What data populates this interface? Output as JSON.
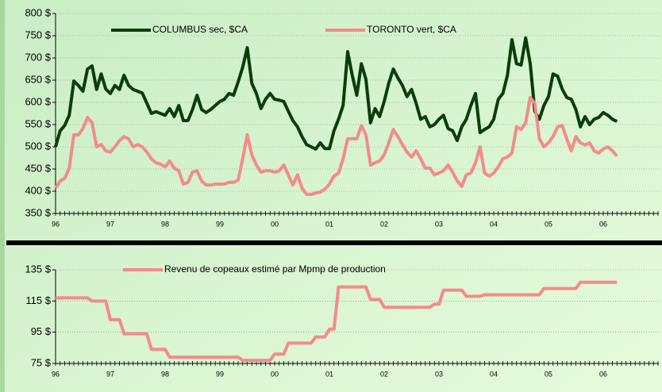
{
  "chart_data": [
    {
      "type": "line",
      "categories": [
        "96",
        null,
        null,
        null,
        null,
        null,
        null,
        null,
        null,
        null,
        null,
        null,
        "97",
        null,
        null,
        null,
        null,
        null,
        null,
        null,
        null,
        null,
        null,
        null,
        "98",
        null,
        null,
        null,
        null,
        null,
        null,
        null,
        null,
        null,
        null,
        null,
        "99",
        null,
        null,
        null,
        null,
        null,
        null,
        null,
        null,
        null,
        null,
        null,
        "00",
        null,
        null,
        null,
        null,
        null,
        null,
        null,
        null,
        null,
        null,
        null,
        "01",
        null,
        null,
        null,
        null,
        null,
        null,
        null,
        null,
        null,
        null,
        null,
        "02",
        null,
        null,
        null,
        null,
        null,
        null,
        null,
        null,
        null,
        null,
        null,
        "03",
        null,
        null,
        null,
        null,
        null,
        null,
        null,
        null,
        null,
        null,
        null,
        "04",
        null,
        null,
        null,
        null,
        null,
        null,
        null,
        null,
        null,
        null,
        null,
        "05",
        null,
        null,
        null,
        null,
        null,
        null,
        null,
        null,
        null,
        null,
        null,
        "06",
        null,
        null,
        null
      ],
      "series": [
        {
          "name": "COLUMBUS sec, $CA",
          "color": "#0b3d0b",
          "values": [
            500,
            536,
            548,
            571,
            648,
            638,
            625,
            675,
            682,
            629,
            664,
            630,
            620,
            638,
            629,
            661,
            638,
            629,
            625,
            621,
            598,
            575,
            579,
            575,
            571,
            586,
            568,
            593,
            559,
            559,
            584,
            616,
            584,
            577,
            584,
            593,
            602,
            607,
            620,
            616,
            646,
            679,
            723,
            643,
            620,
            586,
            607,
            620,
            607,
            605,
            602,
            580,
            559,
            545,
            523,
            505,
            500,
            495,
            509,
            496,
            496,
            536,
            562,
            593,
            714,
            661,
            616,
            687,
            652,
            554,
            586,
            568,
            602,
            643,
            675,
            655,
            638,
            613,
            629,
            598,
            562,
            568,
            545,
            550,
            562,
            571,
            541,
            536,
            514,
            545,
            562,
            593,
            620,
            532,
            539,
            545,
            562,
            607,
            620,
            661,
            741,
            687,
            684,
            745,
            687,
            580,
            562,
            593,
            613,
            664,
            659,
            630,
            611,
            607,
            584,
            545,
            568,
            550,
            562,
            566,
            577,
            571,
            562,
            557
          ]
        },
        {
          "name": "TORONTO vert, $CA",
          "color": "#f58a8a",
          "values": [
            407,
            423,
            429,
            452,
            527,
            527,
            541,
            566,
            554,
            500,
            505,
            491,
            488,
            500,
            514,
            523,
            518,
            500,
            505,
            500,
            488,
            473,
            464,
            461,
            455,
            468,
            452,
            446,
            416,
            420,
            443,
            446,
            423,
            414,
            414,
            416,
            416,
            416,
            420,
            420,
            425,
            473,
            527,
            482,
            459,
            443,
            446,
            446,
            443,
            446,
            459,
            437,
            414,
            437,
            407,
            393,
            393,
            396,
            398,
            405,
            416,
            434,
            441,
            473,
            518,
            518,
            518,
            548,
            527,
            459,
            464,
            468,
            482,
            509,
            539,
            523,
            505,
            488,
            477,
            491,
            473,
            452,
            452,
            437,
            441,
            446,
            459,
            443,
            423,
            411,
            437,
            441,
            464,
            500,
            441,
            434,
            441,
            455,
            473,
            477,
            486,
            545,
            539,
            554,
            611,
            598,
            518,
            500,
            509,
            523,
            545,
            548,
            518,
            491,
            523,
            509,
            504,
            509,
            491,
            486,
            495,
            500,
            491,
            479
          ]
        }
      ],
      "ylim": [
        350,
        800
      ],
      "yticks": [
        {
          "value": 350,
          "label": "350 $"
        },
        {
          "value": 400,
          "label": "400 $"
        },
        {
          "value": 450,
          "label": "450 $"
        },
        {
          "value": 500,
          "label": "500 $"
        },
        {
          "value": 550,
          "label": "550 $"
        },
        {
          "value": 600,
          "label": "600 $"
        },
        {
          "value": 650,
          "label": "650 $"
        },
        {
          "value": 700,
          "label": "700 $"
        },
        {
          "value": 750,
          "label": "750 $"
        },
        {
          "value": 800,
          "label": "800 $"
        }
      ],
      "grid": true
    },
    {
      "type": "line",
      "categories": [
        "96",
        null,
        null,
        null,
        null,
        null,
        null,
        null,
        null,
        null,
        null,
        null,
        "97",
        null,
        null,
        null,
        null,
        null,
        null,
        null,
        null,
        null,
        null,
        null,
        "98",
        null,
        null,
        null,
        null,
        null,
        null,
        null,
        null,
        null,
        null,
        null,
        "99",
        null,
        null,
        null,
        null,
        null,
        null,
        null,
        null,
        null,
        null,
        null,
        "00",
        null,
        null,
        null,
        null,
        null,
        null,
        null,
        null,
        null,
        null,
        null,
        "01",
        null,
        null,
        null,
        null,
        null,
        null,
        null,
        null,
        null,
        null,
        null,
        "02",
        null,
        null,
        null,
        null,
        null,
        null,
        null,
        null,
        null,
        null,
        null,
        "03",
        null,
        null,
        null,
        null,
        null,
        null,
        null,
        null,
        null,
        null,
        null,
        "04",
        null,
        null,
        null,
        null,
        null,
        null,
        null,
        null,
        null,
        null,
        null,
        "05",
        null,
        null,
        null,
        null,
        null,
        null,
        null,
        null,
        null,
        null,
        null,
        "06",
        null,
        null,
        null
      ],
      "series": [
        {
          "name": "Revenu de copeaux estimé par Mpmp de production",
          "color": "#f58a8a",
          "values": [
            117,
            117,
            117,
            117,
            117,
            117,
            117,
            117,
            115,
            115,
            115,
            115,
            103,
            103,
            103,
            94,
            94,
            94,
            94,
            94,
            94,
            84,
            84,
            84,
            84,
            79,
            79,
            79,
            79,
            79,
            79,
            79,
            79,
            79,
            79,
            79,
            79,
            79,
            79,
            79,
            79,
            77,
            77,
            77,
            77,
            77,
            77,
            77,
            81,
            81,
            81,
            88,
            88,
            88,
            88,
            88,
            88,
            92,
            92,
            92,
            97,
            97,
            124,
            124,
            124,
            124,
            124,
            124,
            124,
            116,
            116,
            116,
            111,
            111,
            111,
            111,
            111,
            111,
            111,
            111,
            111,
            111,
            111,
            113,
            113,
            122,
            122,
            122,
            122,
            122,
            118,
            118,
            118,
            118,
            119,
            119,
            119,
            119,
            119,
            119,
            119,
            119,
            119,
            119,
            119,
            119,
            119,
            123,
            123,
            123,
            123,
            123,
            123,
            123,
            123,
            127,
            127,
            127,
            127,
            127,
            127,
            127,
            127,
            127
          ]
        }
      ],
      "ylim": [
        75,
        135
      ],
      "yticks": [
        {
          "value": 75,
          "label": "75 $"
        },
        {
          "value": 95,
          "label": "95 $"
        },
        {
          "value": 115,
          "label": "115 $"
        },
        {
          "value": 135,
          "label": "135 $"
        }
      ],
      "grid": true
    }
  ]
}
